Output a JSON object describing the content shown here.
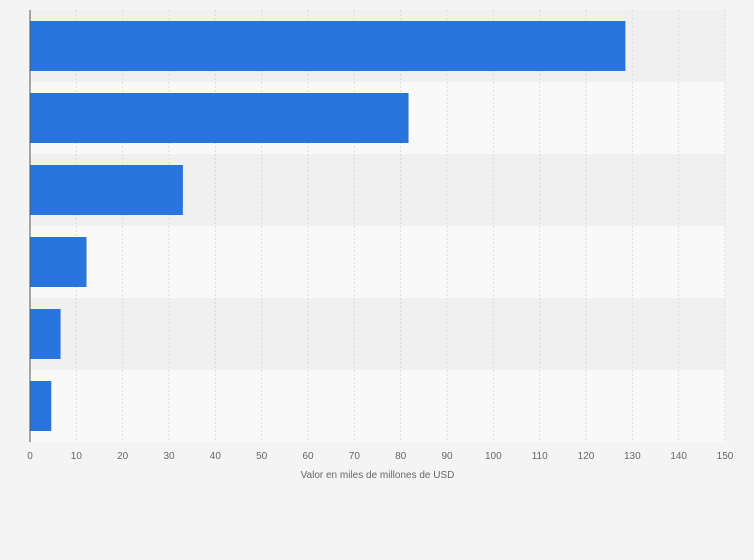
{
  "chart_data": {
    "type": "bar",
    "orientation": "horizontal",
    "categories": [
      "",
      "",
      "",
      "",
      "",
      ""
    ],
    "values": [
      128.5,
      81.7,
      33.0,
      12.2,
      6.6,
      4.6
    ],
    "xlabel": "Valor en miles de millones de USD",
    "ylabel": "",
    "xlim": [
      0,
      150
    ],
    "xticks": [
      "0",
      "10",
      "20",
      "30",
      "40",
      "50",
      "60",
      "70",
      "80",
      "90",
      "100",
      "110",
      "120",
      "130",
      "140",
      "150"
    ],
    "grid": true,
    "legend": "none",
    "colors": {
      "bar": "#2876dd",
      "band_dark": "#f0f0f0",
      "band_light": "#f9f9f9",
      "grid": "#dcdcdc",
      "axis": "#555555"
    }
  }
}
